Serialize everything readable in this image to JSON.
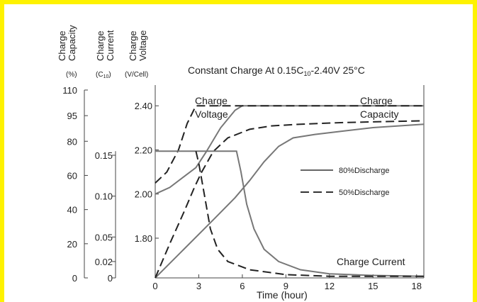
{
  "chart_data": {
    "type": "line",
    "title": "Constant Charge At 0.15C",
    "title_sub": "10",
    "title_rest": "-2.40V  25°C",
    "xlabel": "Time (hour)",
    "x_ticks": [
      0,
      3,
      6,
      9,
      12,
      15,
      18
    ],
    "xlim": [
      0,
      18.5
    ],
    "axes": {
      "capacity": {
        "label_line1": "Charge",
        "label_line2": "Capacity",
        "unit": "(%)",
        "ticks": [
          "110",
          "95",
          "80",
          "60",
          "40",
          "20",
          "0"
        ],
        "tick_values": [
          110,
          95,
          80,
          60,
          40,
          20,
          0
        ]
      },
      "current": {
        "label_line1": "Charge",
        "label_line2": "Current",
        "unit": "(C",
        "unit_sub": "10",
        "unit_end": ")",
        "ticks": [
          "0.15",
          "0.10",
          "0.05",
          "0.02",
          "0"
        ],
        "tick_values": [
          0.15,
          0.1,
          0.05,
          0.02,
          0
        ]
      },
      "voltage": {
        "label_line1": "Charge",
        "label_line2": "Voltage",
        "unit": "(V/Cell)",
        "ticks": [
          "2.40",
          "2.20",
          "2.00",
          "1.80"
        ],
        "tick_values": [
          2.4,
          2.2,
          2.0,
          1.8
        ],
        "ylim": [
          1.62,
          2.42
        ]
      }
    },
    "legend": [
      {
        "name": "80%Discharge",
        "style": "solid"
      },
      {
        "name": "50%Discharge",
        "style": "dashed"
      }
    ],
    "annotations": {
      "charge_voltage": [
        "Charge",
        "Voltage"
      ],
      "charge_capacity": [
        "Charge",
        "Capacity"
      ],
      "charge_current": "Charge Current"
    },
    "series": [
      {
        "name": "80%Discharge",
        "quantity": "voltage",
        "style": "solid",
        "points": [
          [
            0,
            2.0
          ],
          [
            1,
            2.03
          ],
          [
            2,
            2.08
          ],
          [
            2.8,
            2.12
          ],
          [
            3.5,
            2.19
          ],
          [
            4.5,
            2.3
          ],
          [
            5.5,
            2.38
          ],
          [
            6,
            2.4
          ],
          [
            18.5,
            2.4
          ]
        ]
      },
      {
        "name": "50%Discharge",
        "quantity": "voltage",
        "style": "dashed",
        "points": [
          [
            0,
            2.05
          ],
          [
            0.8,
            2.1
          ],
          [
            1.6,
            2.2
          ],
          [
            2.2,
            2.32
          ],
          [
            2.8,
            2.4
          ],
          [
            18.5,
            2.4
          ]
        ]
      },
      {
        "name": "80%Discharge",
        "quantity": "capacity",
        "style": "solid",
        "points": [
          [
            0,
            0
          ],
          [
            2,
            17
          ],
          [
            4,
            34
          ],
          [
            5.5,
            47
          ],
          [
            6.5,
            57
          ],
          [
            7.5,
            68
          ],
          [
            8.5,
            77
          ],
          [
            9.5,
            82
          ],
          [
            11,
            84
          ],
          [
            13,
            86
          ],
          [
            15,
            88
          ],
          [
            18.5,
            90
          ]
        ]
      },
      {
        "name": "50%Discharge",
        "quantity": "capacity",
        "style": "dashed",
        "points": [
          [
            0,
            0
          ],
          [
            1,
            20
          ],
          [
            2,
            39
          ],
          [
            2.7,
            53
          ],
          [
            3.2,
            62
          ],
          [
            4,
            74
          ],
          [
            5,
            82
          ],
          [
            6.5,
            87
          ],
          [
            8,
            89
          ],
          [
            10,
            90
          ],
          [
            13,
            91
          ],
          [
            18.5,
            92
          ]
        ]
      },
      {
        "name": "80%Discharge",
        "quantity": "current",
        "style": "solid",
        "points": [
          [
            0,
            0.155
          ],
          [
            5.6,
            0.155
          ],
          [
            5.9,
            0.13
          ],
          [
            6.3,
            0.09
          ],
          [
            6.8,
            0.06
          ],
          [
            7.5,
            0.035
          ],
          [
            8.5,
            0.02
          ],
          [
            10,
            0.01
          ],
          [
            12,
            0.005
          ],
          [
            15,
            0.003
          ],
          [
            18.5,
            0.002
          ]
        ]
      },
      {
        "name": "50%Discharge",
        "quantity": "current",
        "style": "dashed",
        "points": [
          [
            2.8,
            0.155
          ],
          [
            3.0,
            0.14
          ],
          [
            3.4,
            0.1
          ],
          [
            3.8,
            0.06
          ],
          [
            4.3,
            0.035
          ],
          [
            5,
            0.02
          ],
          [
            6.5,
            0.01
          ],
          [
            9,
            0.004
          ],
          [
            12,
            0.002
          ],
          [
            18.5,
            0.002
          ]
        ]
      }
    ]
  }
}
